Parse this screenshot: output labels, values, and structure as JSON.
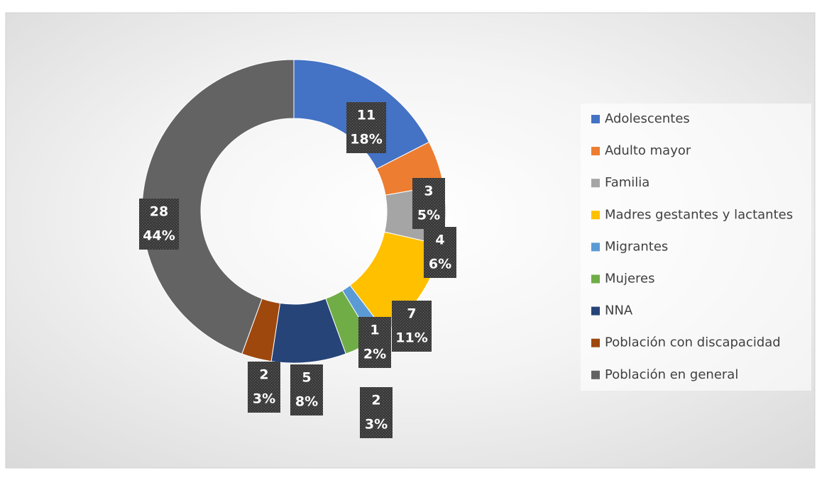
{
  "chart_data": {
    "type": "donut",
    "categories": [
      "Adolescentes",
      "Adulto mayor",
      "Familia",
      "Madres gestantes y lactantes",
      "Migrantes",
      "Mujeres",
      "NNA",
      "Población con discapacidad",
      "Población en general"
    ],
    "values": [
      11,
      3,
      4,
      7,
      1,
      2,
      5,
      2,
      28
    ],
    "percent_labels": [
      "18%",
      "5%",
      "6%",
      "11%",
      "2%",
      "3%",
      "8%",
      "3%",
      "44%"
    ],
    "colors": [
      "#4472c4",
      "#ed7d31",
      "#a5a5a5",
      "#ffc000",
      "#5b9bd5",
      "#70ad47",
      "#264478",
      "#9e480e",
      "#636363"
    ],
    "legend": "right"
  }
}
